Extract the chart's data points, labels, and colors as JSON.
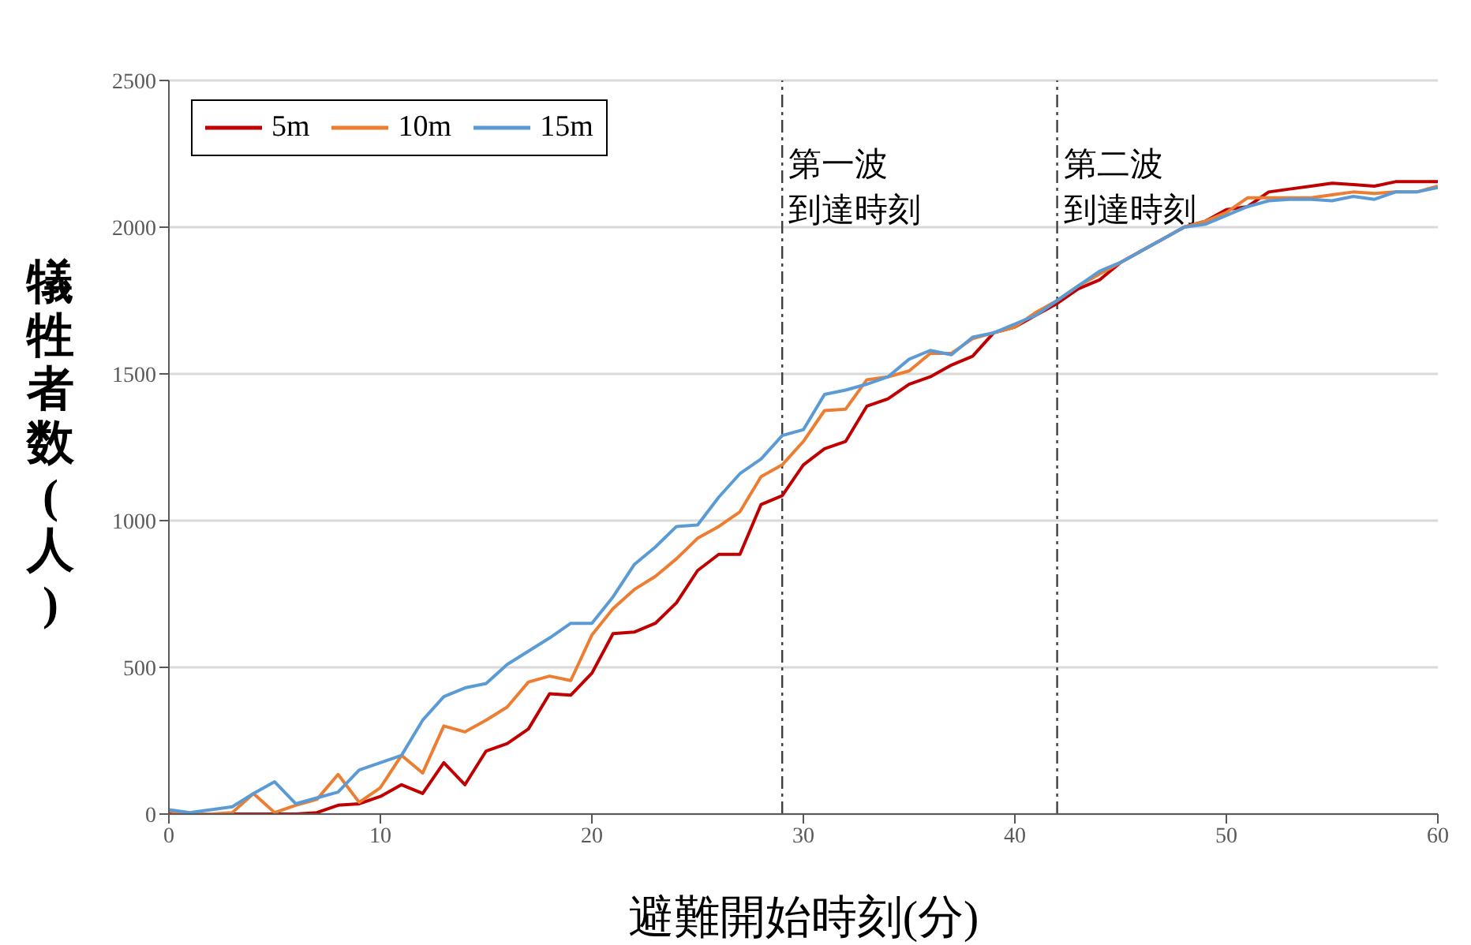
{
  "chart_data": {
    "type": "line",
    "xlabel": "避難開始時刻(分)",
    "ylabel": "犠牲者数(人)",
    "x": [
      0,
      1,
      2,
      3,
      4,
      5,
      6,
      7,
      8,
      9,
      10,
      11,
      12,
      13,
      14,
      15,
      16,
      17,
      18,
      19,
      20,
      21,
      22,
      23,
      24,
      25,
      26,
      27,
      28,
      29,
      30,
      31,
      32,
      33,
      34,
      35,
      36,
      37,
      38,
      39,
      40,
      41,
      42,
      43,
      44,
      45,
      46,
      47,
      48,
      49,
      50,
      51,
      52,
      53,
      54,
      55,
      56,
      57,
      58,
      59,
      60
    ],
    "series": [
      {
        "name": "5m",
        "color": "#c00000",
        "values": [
          0,
          0,
          0,
          0,
          0,
          0,
          0,
          5,
          30,
          35,
          60,
          100,
          70,
          175,
          100,
          215,
          240,
          290,
          410,
          405,
          480,
          615,
          620,
          650,
          720,
          830,
          885,
          885,
          1055,
          1085,
          1190,
          1245,
          1270,
          1390,
          1415,
          1465,
          1490,
          1530,
          1560,
          1640,
          1660,
          1700,
          1740,
          1790,
          1820,
          1880,
          1920,
          1960,
          2000,
          2020,
          2060,
          2070,
          2120,
          2130,
          2140,
          2150,
          2145,
          2140,
          2155,
          2155,
          2155
        ]
      },
      {
        "name": "10m",
        "color": "#ed7d31",
        "values": [
          10,
          0,
          0,
          5,
          70,
          5,
          30,
          50,
          135,
          40,
          90,
          200,
          140,
          300,
          280,
          320,
          365,
          450,
          470,
          455,
          610,
          700,
          765,
          810,
          870,
          940,
          980,
          1030,
          1150,
          1190,
          1270,
          1375,
          1380,
          1480,
          1490,
          1510,
          1570,
          1570,
          1620,
          1640,
          1660,
          1710,
          1750,
          1800,
          1840,
          1880,
          1920,
          1960,
          2000,
          2020,
          2050,
          2100,
          2100,
          2100,
          2100,
          2110,
          2120,
          2115,
          2120,
          2120,
          2140
        ]
      },
      {
        "name": "15m",
        "color": "#5b9bd5",
        "values": [
          15,
          5,
          15,
          25,
          70,
          110,
          35,
          55,
          75,
          150,
          175,
          200,
          320,
          400,
          430,
          445,
          510,
          555,
          600,
          650,
          650,
          740,
          850,
          910,
          980,
          985,
          1080,
          1160,
          1210,
          1290,
          1310,
          1430,
          1445,
          1465,
          1490,
          1550,
          1580,
          1565,
          1625,
          1640,
          1670,
          1700,
          1750,
          1800,
          1850,
          1880,
          1920,
          1960,
          2000,
          2010,
          2040,
          2070,
          2090,
          2095,
          2095,
          2090,
          2105,
          2095,
          2120,
          2120,
          2135
        ]
      }
    ],
    "xlim": [
      0,
      60
    ],
    "xticks": [
      0,
      10,
      20,
      30,
      40,
      50,
      60
    ],
    "ylim": [
      0,
      2500
    ],
    "yticks": [
      0,
      500,
      1000,
      1500,
      2000,
      2500
    ],
    "ref_lines": [
      {
        "axis": "x",
        "value": 29,
        "label": "第一波到達時刻",
        "color": "#404040",
        "line_style": "dashdot"
      },
      {
        "axis": "x",
        "value": 42,
        "label": "第二波到達時刻",
        "color": "#404040",
        "line_style": "dashdot"
      }
    ],
    "grid": "y",
    "legend": "top left",
    "marker": "none",
    "line_style": "solid"
  }
}
